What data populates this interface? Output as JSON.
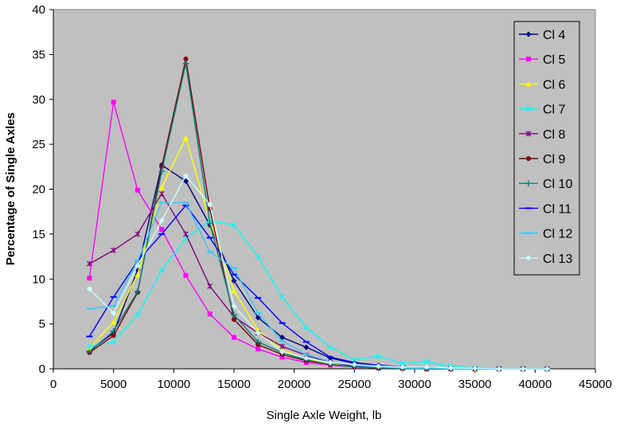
{
  "chart_data": {
    "type": "line",
    "xlabel": "Single Axle Weight, lb",
    "ylabel": "Percentage of Single Axles",
    "xlim": [
      0,
      45000
    ],
    "ylim": [
      0,
      40
    ],
    "xticks": [
      0,
      5000,
      10000,
      15000,
      20000,
      25000,
      30000,
      35000,
      40000,
      45000
    ],
    "yticks": [
      0,
      5,
      10,
      15,
      20,
      25,
      30,
      35,
      40
    ],
    "x_tick_labels": [
      "0",
      "5000",
      "10000",
      "15000",
      "20000",
      "25000",
      "30000",
      "35000",
      "40000",
      "45000"
    ],
    "y_tick_labels": [
      "0",
      "5",
      "10",
      "15",
      "20",
      "25",
      "30",
      "35",
      "40"
    ],
    "legend_position": "top-right",
    "grid": false,
    "plot_background": "#c0c0c0",
    "x": [
      3000,
      5000,
      7000,
      9000,
      11000,
      13000,
      15000,
      17000,
      19000,
      21000,
      23000,
      25000,
      27000,
      29000,
      31000,
      33000,
      35000,
      37000,
      39000,
      41000
    ],
    "series": [
      {
        "name": "Cl 4",
        "color": "#000080",
        "marker": "diamond",
        "values": [
          2.0,
          4.0,
          11.0,
          22.7,
          20.9,
          16.0,
          9.8,
          5.7,
          3.5,
          2.4,
          1.2,
          0.6,
          0.4,
          0.2,
          0.1,
          0.05,
          0,
          0,
          0,
          0
        ]
      },
      {
        "name": "Cl 5",
        "color": "#ff00ff",
        "marker": "square",
        "values": [
          10.1,
          29.7,
          19.9,
          15.5,
          10.4,
          6.1,
          3.5,
          2.2,
          1.3,
          0.7,
          0.4,
          0.2,
          0.1,
          0.1,
          0.05,
          0,
          0,
          0,
          0,
          0
        ]
      },
      {
        "name": "Cl 6",
        "color": "#ffff00",
        "marker": "triangle",
        "values": [
          2.3,
          5.2,
          10.5,
          20.2,
          25.7,
          16.5,
          8.7,
          4.3,
          2.1,
          1.1,
          0.6,
          0.3,
          0.2,
          0.1,
          0.05,
          0,
          0,
          0,
          0,
          0
        ]
      },
      {
        "name": "Cl 7",
        "color": "#00ffff",
        "marker": "x",
        "values": [
          2.5,
          3.0,
          6.0,
          11.0,
          14.5,
          16.5,
          16.0,
          12.5,
          8.0,
          4.6,
          2.4,
          1.0,
          1.4,
          0.6,
          0.8,
          0.3,
          0.1,
          0,
          0,
          0
        ]
      },
      {
        "name": "Cl 8",
        "color": "#800080",
        "marker": "star",
        "values": [
          11.7,
          13.2,
          15.0,
          19.5,
          15.0,
          9.2,
          5.8,
          4.0,
          2.5,
          1.5,
          0.7,
          0.3,
          0.1,
          0.1,
          0,
          0,
          0,
          0,
          0,
          0
        ]
      },
      {
        "name": "Cl 9",
        "color": "#800000",
        "marker": "circle",
        "values": [
          1.8,
          3.7,
          8.5,
          22.5,
          34.5,
          17.8,
          5.5,
          2.7,
          1.6,
          0.9,
          0.5,
          0.2,
          0.1,
          0.05,
          0,
          0,
          0,
          0,
          0,
          0
        ]
      },
      {
        "name": "Cl 10",
        "color": "#008080",
        "marker": "plus",
        "values": [
          1.9,
          4.2,
          8.6,
          22.0,
          34.0,
          16.2,
          6.0,
          3.0,
          1.8,
          1.0,
          0.5,
          0.2,
          0.1,
          0.05,
          0,
          0,
          0,
          0,
          0,
          0
        ]
      },
      {
        "name": "Cl 11",
        "color": "#0000ff",
        "marker": "dash",
        "values": [
          3.6,
          8.0,
          12.0,
          15.0,
          18.2,
          14.6,
          10.5,
          7.9,
          5.1,
          3.0,
          1.3,
          0.7,
          0.4,
          0.2,
          0.1,
          0.05,
          0,
          0,
          0,
          0
        ]
      },
      {
        "name": "Cl 12",
        "color": "#33ccff",
        "marker": "dash",
        "values": [
          6.7,
          7.0,
          12.0,
          18.5,
          18.5,
          13.0,
          11.2,
          6.2,
          3.1,
          1.6,
          0.8,
          0.4,
          0.2,
          0.1,
          0.05,
          0,
          0,
          0,
          0,
          0
        ]
      },
      {
        "name": "Cl 13",
        "color": "#ccffff",
        "marker": "diamond",
        "values": [
          8.9,
          6.2,
          11.5,
          16.5,
          21.5,
          18.3,
          7.0,
          4.0,
          1.9,
          1.2,
          0.7,
          0.5,
          0.3,
          0.2,
          0.2,
          0.1,
          0.05,
          0,
          0,
          0
        ]
      }
    ]
  }
}
